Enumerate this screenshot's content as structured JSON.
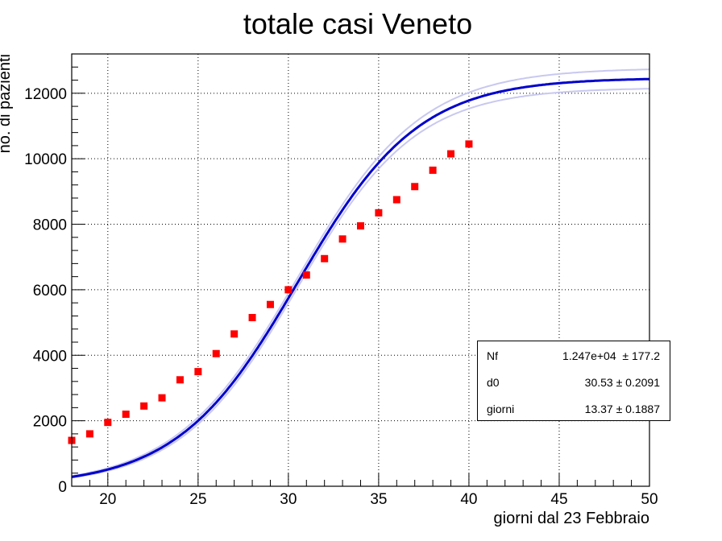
{
  "chart_data": {
    "type": "scatter",
    "title": "totale casi Veneto",
    "xlabel": "giorni dal 23 Febbraio",
    "ylabel": "no. di pazienti",
    "xlim": [
      18,
      50
    ],
    "ylim": [
      0,
      13200
    ],
    "x_ticks": [
      20,
      25,
      30,
      35,
      40,
      45,
      50
    ],
    "y_ticks": [
      0,
      2000,
      4000,
      6000,
      8000,
      10000,
      12000
    ],
    "grid": true,
    "colors": {
      "points": "#ff0000",
      "fit": "#0000cc",
      "band": "#c8c8f0"
    },
    "series": [
      {
        "type": "scatter",
        "x": [
          18,
          19,
          20,
          21,
          22,
          23,
          24,
          25,
          26,
          27,
          28,
          29,
          30,
          31,
          32,
          33,
          34,
          35,
          36,
          37,
          38,
          39,
          40
        ],
        "values": [
          1400,
          1600,
          1950,
          2200,
          2450,
          2700,
          3250,
          3500,
          4050,
          4650,
          5150,
          5550,
          6000,
          6450,
          6950,
          7550,
          7950,
          8350,
          8750,
          9150,
          9650,
          10150,
          10450
        ]
      },
      {
        "type": "line",
        "function": "logistic",
        "params": {
          "Nf": 12470,
          "d0": 30.53,
          "giorni": 13.37
        }
      }
    ],
    "fit_stats": [
      {
        "name": "Nf",
        "value": "1.247e+04",
        "error": "± 177.2"
      },
      {
        "name": "d0",
        "value": "30.53",
        "error": "± 0.2091"
      },
      {
        "name": "giorni",
        "value": "13.37",
        "error": "± 0.1887"
      }
    ]
  }
}
